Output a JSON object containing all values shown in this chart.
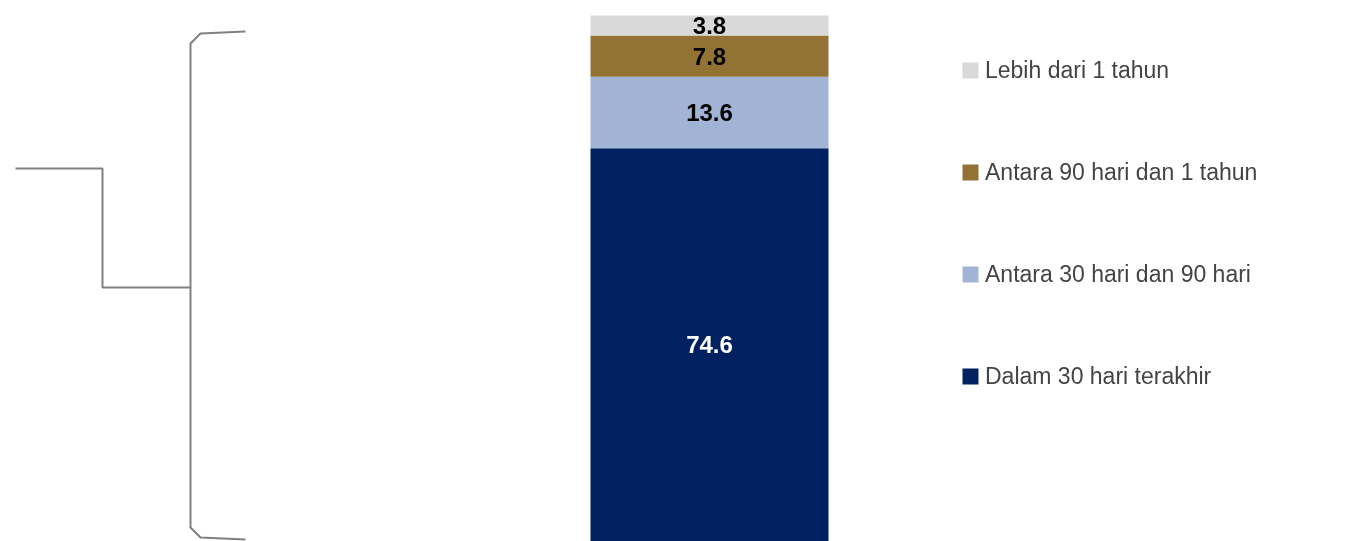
{
  "chart_data": {
    "type": "bar",
    "stacked": true,
    "categories": [
      null
    ],
    "series": [
      {
        "name": "Dalam 30 hari terakhir",
        "color": "#002060",
        "values": [
          74.6
        ]
      },
      {
        "name": "Antara 30 hari dan 90 hari",
        "color": "#a2b4d6",
        "values": [
          13.6
        ]
      },
      {
        "name": "Antara 90 hari dan 1 tahun",
        "color": "#937334",
        "values": [
          7.8
        ]
      },
      {
        "name": "Lebih dari 1 tahun",
        "color": "#d9d9d9",
        "values": [
          3.8
        ]
      }
    ],
    "data_labels": true,
    "legend": "right"
  }
}
